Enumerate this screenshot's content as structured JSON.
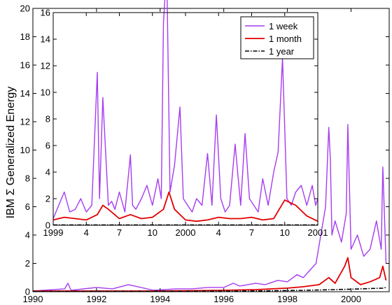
{
  "chart_data": [
    {
      "type": "line",
      "ylabel": "IBM Σ Generalized Energy",
      "xlim": [
        1990,
        2001.2
      ],
      "ylim": [
        0,
        20
      ],
      "x_ticks": [
        "1990",
        "1992",
        "1994",
        "1996",
        "1998",
        "2000"
      ],
      "x_tick_values": [
        1990,
        1992,
        1994,
        1996,
        1998,
        2000
      ],
      "y_ticks": [
        "0",
        "2",
        "4",
        "6",
        "8",
        "10",
        "12",
        "14",
        "16",
        "18",
        "20"
      ],
      "series": [
        {
          "name": "1 week",
          "color": "#a63cf0",
          "x": [
            1990.0,
            1991.0,
            1991.1,
            1991.2,
            1992.0,
            1992.5,
            1993.0,
            1993.8,
            1994.5,
            1995.0,
            1995.5,
            1996.0,
            1996.3,
            1996.5,
            1997.0,
            1997.3,
            1997.7,
            1998.0,
            1998.3,
            1998.5,
            1998.7,
            1998.9,
            1999.2,
            1999.3,
            1999.35,
            1999.4,
            1999.5,
            1999.7,
            1999.85,
            1999.9,
            2000.0,
            2000.2,
            2000.4,
            2000.6,
            2000.8,
            2000.95,
            2001.0,
            2001.1
          ],
          "y": [
            0.05,
            0.2,
            0.6,
            0.1,
            0.3,
            0.2,
            0.5,
            0.1,
            0.2,
            0.2,
            0.3,
            0.3,
            0.6,
            0.4,
            0.6,
            0.5,
            0.8,
            0.7,
            1.2,
            1.0,
            1.5,
            2.0,
            6.0,
            11.6,
            9.4,
            4.0,
            5.0,
            3.5,
            5.5,
            11.8,
            3.0,
            4.0,
            2.5,
            3.0,
            5.0,
            3.0,
            8.8,
            2.0
          ]
        },
        {
          "name": "1 month",
          "color": "#e00000",
          "x": [
            1990.0,
            1994.0,
            1996.0,
            1997.0,
            1998.0,
            1998.5,
            1999.0,
            1999.3,
            1999.5,
            1999.8,
            1999.9,
            2000.0,
            2000.3,
            2000.6,
            2000.9,
            2001.0,
            2001.1
          ],
          "y": [
            0.05,
            0.05,
            0.1,
            0.15,
            0.25,
            0.35,
            0.5,
            1.0,
            0.6,
            1.8,
            2.4,
            1.0,
            0.5,
            0.7,
            1.0,
            1.8,
            0.8
          ]
        },
        {
          "name": "1 year",
          "color": "#000000",
          "x": [
            1990.0,
            1996.0,
            1998.0,
            1999.0,
            2000.0,
            2001.0,
            2001.1
          ],
          "y": [
            0.02,
            0.04,
            0.08,
            0.12,
            0.18,
            0.25,
            0.3
          ]
        }
      ]
    },
    {
      "type": "line",
      "xlim": [
        0,
        24
      ],
      "ylim": [
        0,
        16
      ],
      "x_ticks": [
        "1999",
        "4",
        "7",
        "10",
        "2000",
        "4",
        "7",
        "10",
        "2001"
      ],
      "x_tick_values": [
        0,
        3,
        6,
        9,
        12,
        15,
        18,
        21,
        24
      ],
      "y_ticks": [
        "0",
        "2",
        "4",
        "6",
        "8",
        "10",
        "12",
        "14",
        "16"
      ],
      "legend": {
        "position": "top-right",
        "entries": [
          "1 week",
          "1 month",
          "1 year"
        ]
      },
      "series": [
        {
          "name": "1 week",
          "color": "#a63cf0",
          "x": [
            0,
            0.5,
            1,
            1.5,
            2,
            2.5,
            3,
            3.5,
            4.0,
            4.2,
            4.5,
            5.0,
            5.3,
            5.6,
            6,
            6.5,
            7.0,
            7.2,
            7.5,
            8,
            8.5,
            9.0,
            9.5,
            9.8,
            10.0,
            10.3,
            10.6,
            11.0,
            11.5,
            11.8,
            12.2,
            12.6,
            13,
            13.5,
            14.0,
            14.4,
            14.8,
            15.2,
            15.6,
            16.0,
            16.5,
            17.0,
            17.4,
            17.8,
            18.2,
            18.6,
            19,
            19.5,
            20,
            20.4,
            20.8,
            21.2,
            21.6,
            22.0,
            22.5,
            23,
            23.5,
            23.8,
            24
          ],
          "y": [
            0.5,
            1.5,
            2.5,
            1.0,
            1.2,
            2.0,
            1.0,
            1.5,
            11.5,
            2.0,
            9.6,
            1.5,
            1.8,
            1.2,
            2.5,
            1.0,
            5.3,
            1.5,
            1.2,
            2.0,
            3.0,
            1.5,
            3.5,
            2.0,
            15.2,
            19.3,
            2.5,
            4.5,
            8.9,
            2.0,
            1.5,
            1.0,
            2.0,
            1.5,
            5.4,
            1.5,
            8.3,
            2.0,
            1.0,
            1.5,
            6.1,
            1.5,
            6.9,
            2.0,
            1.5,
            1.0,
            3.5,
            1.5,
            4.0,
            5.5,
            12.6,
            2.0,
            1.5,
            2.5,
            3.0,
            1.5,
            3.0,
            1.5,
            2.0
          ]
        },
        {
          "name": "1 month",
          "color": "#e00000",
          "x": [
            0,
            1,
            2,
            3,
            4,
            4.5,
            5,
            6,
            7,
            8,
            9,
            10,
            10.5,
            11,
            12,
            13,
            14,
            15,
            16,
            17,
            18,
            19,
            20,
            20.5,
            21,
            22,
            23,
            24
          ],
          "y": [
            0.4,
            0.6,
            0.5,
            0.4,
            0.8,
            1.5,
            1.2,
            0.5,
            0.8,
            0.5,
            0.6,
            1.2,
            2.5,
            1.2,
            0.4,
            0.3,
            0.4,
            0.6,
            0.5,
            0.5,
            0.6,
            0.4,
            0.5,
            1.2,
            1.9,
            1.5,
            0.7,
            0.3
          ]
        },
        {
          "name": "1 year",
          "color": "#000000",
          "x": [
            0,
            6,
            12,
            18,
            24
          ],
          "y": [
            0.02,
            0.02,
            0.02,
            0.02,
            0.02
          ]
        }
      ]
    }
  ]
}
